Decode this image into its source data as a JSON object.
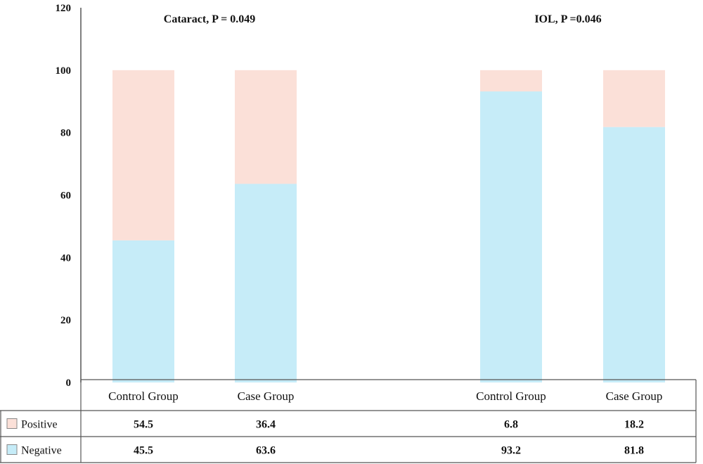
{
  "chart_data": [
    {
      "type": "bar",
      "stacked": true,
      "title": "Cataract, P = 0.049",
      "categories": [
        "Control Group",
        "Case Group"
      ],
      "series": [
        {
          "name": "Positive",
          "values": [
            "54.5",
            "36.4"
          ]
        },
        {
          "name": "Negative",
          "values": [
            "45.5",
            "63.6"
          ]
        }
      ],
      "ylim": [
        0,
        120
      ],
      "yticks": [
        "0",
        "20",
        "40",
        "60",
        "80",
        "100",
        "120"
      ],
      "xlabel": "",
      "ylabel": ""
    },
    {
      "type": "bar",
      "stacked": true,
      "title": "IOL, P =0.046",
      "categories": [
        "Control Group",
        "Case Group"
      ],
      "series": [
        {
          "name": "Positive",
          "values": [
            "6.8",
            "18.2"
          ]
        },
        {
          "name": "Negative",
          "values": [
            "93.2",
            "81.8"
          ]
        }
      ],
      "ylim": [
        0,
        120
      ],
      "yticks": [
        "0",
        "20",
        "40",
        "60",
        "80",
        "100",
        "120"
      ],
      "xlabel": "",
      "ylabel": ""
    }
  ],
  "colors": {
    "Positive": "#fbe0d8",
    "Negative": "#c6ecf8",
    "axis": "#555555"
  },
  "legend_placement": "bottom-table",
  "grid": false
}
